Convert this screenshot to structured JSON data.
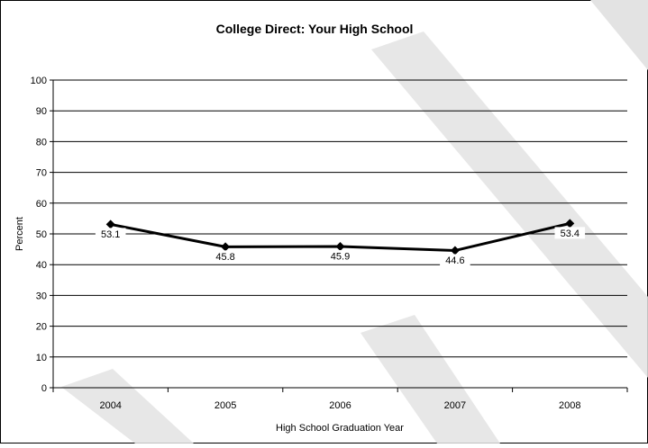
{
  "chart_data": {
    "type": "line",
    "title": "College Direct: Your High School",
    "xlabel": "High School Graduation Year",
    "ylabel": "Percent",
    "categories": [
      "2004",
      "2005",
      "2006",
      "2007",
      "2008"
    ],
    "series": [
      {
        "values": [
          53.1,
          45.8,
          45.9,
          44.6,
          53.4
        ],
        "labels": [
          "53.1",
          "45.8",
          "45.9",
          "44.6",
          "53.4"
        ]
      }
    ],
    "ylim": [
      0,
      100
    ],
    "yticks": [
      "0",
      "10",
      "20",
      "30",
      "40",
      "50",
      "60",
      "70",
      "80",
      "90",
      "100"
    ],
    "grid": true,
    "legend": "none",
    "colors": {
      "line": "#000000",
      "grid": "#000000",
      "background": "#ffffff",
      "watermark": "#dcdcdc"
    }
  }
}
